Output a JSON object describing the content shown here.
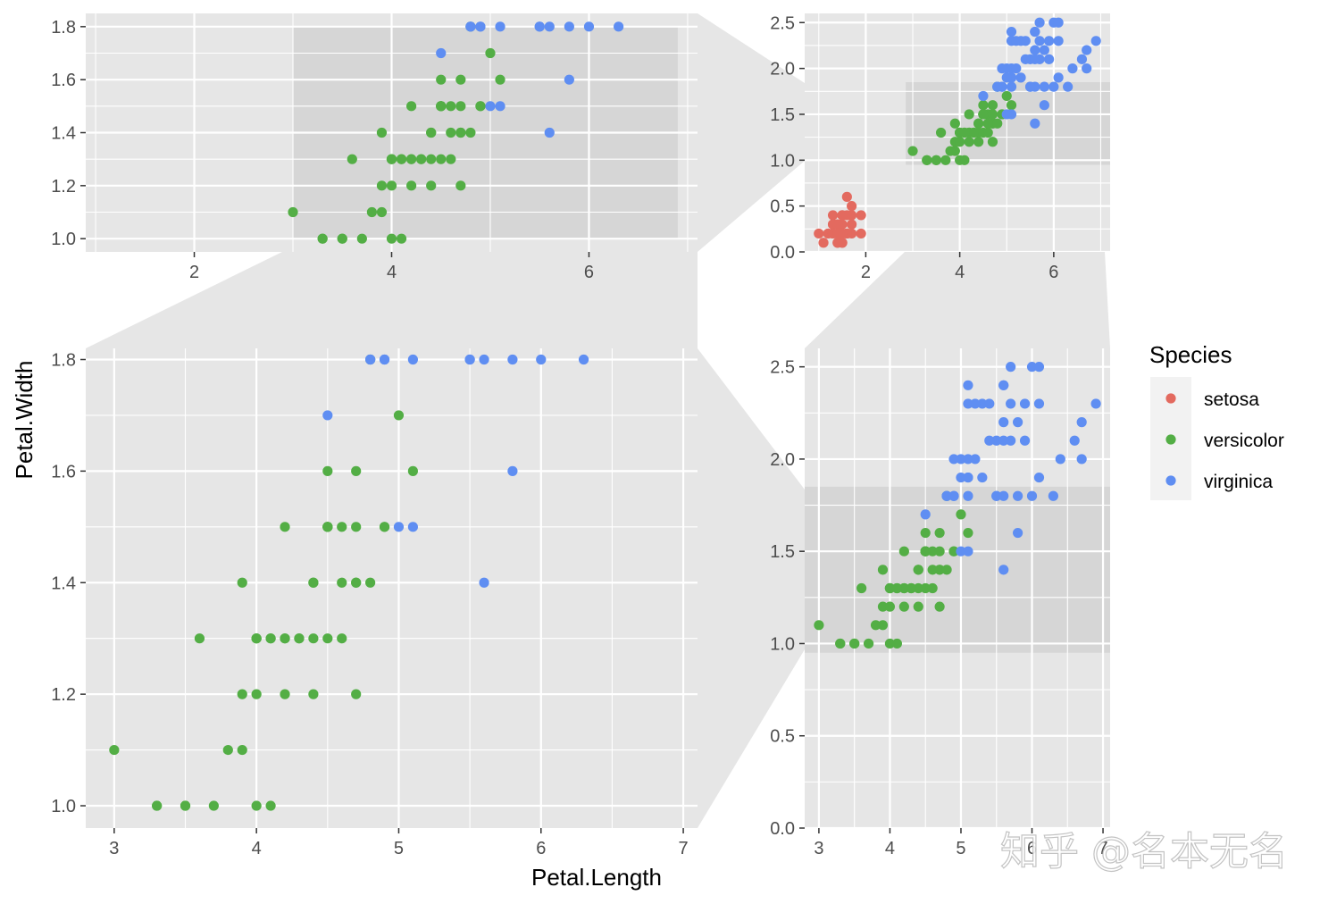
{
  "colors": {
    "setosa": "#E36A5F",
    "versicolor": "#53AE45",
    "virginica": "#5F8EF2",
    "panel_bg": "#E6E6E6",
    "zoom_bg": "#D6D6D6",
    "connector": "#E6E6E6"
  },
  "axis_titles": {
    "x": "Petal.Length",
    "y": "Petal.Width"
  },
  "legend": {
    "title": "Species",
    "entries": [
      "setosa",
      "versicolor",
      "virginica"
    ]
  },
  "watermark": "知乎 @名本无名",
  "chart_data": {
    "type": "scatter",
    "title": "",
    "xlabel": "Petal.Length",
    "ylabel": "Petal.Width",
    "legend_position": "right",
    "grid": true,
    "panels": [
      {
        "id": "top-left",
        "xlim": [
          0.9,
          7.1
        ],
        "ylim": [
          0.95,
          1.85
        ],
        "xticks": [
          2,
          4,
          6
        ],
        "yticks": [
          1.0,
          1.2,
          1.4,
          1.6,
          1.8
        ],
        "zoom_region": {
          "x": [
            3.0,
            6.9
          ],
          "y": [
            1.0,
            1.8
          ]
        }
      },
      {
        "id": "top-right",
        "xlim": [
          0.7,
          7.2
        ],
        "ylim": [
          0,
          2.6
        ],
        "xticks": [
          2,
          4,
          6
        ],
        "yticks": [
          0.0,
          0.5,
          1.0,
          1.5,
          2.0,
          2.5
        ],
        "zoom_region": {
          "x": [
            2.85,
            7.2
          ],
          "y": [
            0.95,
            1.85
          ]
        }
      },
      {
        "id": "bottom-left",
        "xlim": [
          2.8,
          7.1
        ],
        "ylim": [
          0.96,
          1.82
        ],
        "xticks": [
          3,
          4,
          5,
          6,
          7
        ],
        "yticks": [
          1.0,
          1.2,
          1.4,
          1.6,
          1.8
        ]
      },
      {
        "id": "bottom-right",
        "xlim": [
          2.8,
          7.1
        ],
        "ylim": [
          0,
          2.6
        ],
        "xticks": [
          3,
          4,
          5,
          6,
          7
        ],
        "yticks": [
          0.0,
          0.5,
          1.0,
          1.5,
          2.0,
          2.5
        ],
        "zoom_region": {
          "x": [
            2.8,
            7.1
          ],
          "y": [
            0.95,
            1.85
          ]
        }
      }
    ],
    "series": [
      {
        "name": "setosa",
        "points": [
          [
            1.4,
            0.2
          ],
          [
            1.4,
            0.2
          ],
          [
            1.3,
            0.2
          ],
          [
            1.5,
            0.2
          ],
          [
            1.4,
            0.2
          ],
          [
            1.7,
            0.4
          ],
          [
            1.4,
            0.3
          ],
          [
            1.5,
            0.2
          ],
          [
            1.4,
            0.2
          ],
          [
            1.5,
            0.1
          ],
          [
            1.5,
            0.2
          ],
          [
            1.6,
            0.2
          ],
          [
            1.4,
            0.1
          ],
          [
            1.1,
            0.1
          ],
          [
            1.2,
            0.2
          ],
          [
            1.5,
            0.4
          ],
          [
            1.3,
            0.4
          ],
          [
            1.4,
            0.3
          ],
          [
            1.7,
            0.3
          ],
          [
            1.5,
            0.3
          ],
          [
            1.7,
            0.2
          ],
          [
            1.5,
            0.4
          ],
          [
            1.0,
            0.2
          ],
          [
            1.7,
            0.5
          ],
          [
            1.9,
            0.2
          ],
          [
            1.6,
            0.2
          ],
          [
            1.6,
            0.4
          ],
          [
            1.5,
            0.2
          ],
          [
            1.4,
            0.2
          ],
          [
            1.6,
            0.2
          ],
          [
            1.6,
            0.2
          ],
          [
            1.5,
            0.4
          ],
          [
            1.5,
            0.1
          ],
          [
            1.4,
            0.2
          ],
          [
            1.5,
            0.2
          ],
          [
            1.2,
            0.2
          ],
          [
            1.3,
            0.2
          ],
          [
            1.4,
            0.1
          ],
          [
            1.3,
            0.2
          ],
          [
            1.5,
            0.2
          ],
          [
            1.3,
            0.3
          ],
          [
            1.3,
            0.3
          ],
          [
            1.3,
            0.2
          ],
          [
            1.6,
            0.6
          ],
          [
            1.9,
            0.4
          ],
          [
            1.4,
            0.3
          ],
          [
            1.6,
            0.2
          ],
          [
            1.4,
            0.2
          ],
          [
            1.5,
            0.2
          ],
          [
            1.4,
            0.2
          ]
        ]
      },
      {
        "name": "versicolor",
        "points": [
          [
            4.7,
            1.4
          ],
          [
            4.5,
            1.5
          ],
          [
            4.9,
            1.5
          ],
          [
            4.0,
            1.3
          ],
          [
            4.6,
            1.5
          ],
          [
            4.5,
            1.3
          ],
          [
            4.7,
            1.6
          ],
          [
            3.3,
            1.0
          ],
          [
            4.6,
            1.3
          ],
          [
            3.9,
            1.4
          ],
          [
            3.5,
            1.0
          ],
          [
            4.2,
            1.5
          ],
          [
            4.0,
            1.0
          ],
          [
            4.7,
            1.4
          ],
          [
            3.6,
            1.3
          ],
          [
            4.4,
            1.4
          ],
          [
            4.5,
            1.5
          ],
          [
            4.1,
            1.0
          ],
          [
            4.5,
            1.5
          ],
          [
            3.9,
            1.1
          ],
          [
            4.8,
            1.8
          ],
          [
            4.0,
            1.3
          ],
          [
            4.9,
            1.5
          ],
          [
            4.7,
            1.2
          ],
          [
            4.3,
            1.3
          ],
          [
            4.4,
            1.4
          ],
          [
            4.8,
            1.4
          ],
          [
            5.0,
            1.7
          ],
          [
            4.5,
            1.5
          ],
          [
            3.5,
            1.0
          ],
          [
            3.8,
            1.1
          ],
          [
            3.7,
            1.0
          ],
          [
            3.9,
            1.2
          ],
          [
            5.1,
            1.6
          ],
          [
            4.5,
            1.5
          ],
          [
            4.5,
            1.6
          ],
          [
            4.7,
            1.5
          ],
          [
            4.4,
            1.3
          ],
          [
            4.1,
            1.3
          ],
          [
            4.0,
            1.3
          ],
          [
            4.4,
            1.2
          ],
          [
            4.6,
            1.4
          ],
          [
            4.0,
            1.2
          ],
          [
            3.3,
            1.0
          ],
          [
            4.2,
            1.3
          ],
          [
            4.2,
            1.2
          ],
          [
            4.2,
            1.3
          ],
          [
            4.3,
            1.3
          ],
          [
            3.0,
            1.1
          ],
          [
            4.1,
            1.3
          ]
        ]
      },
      {
        "name": "virginica",
        "points": [
          [
            6.0,
            2.5
          ],
          [
            5.1,
            1.9
          ],
          [
            5.9,
            2.1
          ],
          [
            5.6,
            1.8
          ],
          [
            5.8,
            2.2
          ],
          [
            6.6,
            2.1
          ],
          [
            4.5,
            1.7
          ],
          [
            6.3,
            1.8
          ],
          [
            5.8,
            1.8
          ],
          [
            6.1,
            2.5
          ],
          [
            5.1,
            2.0
          ],
          [
            5.3,
            1.9
          ],
          [
            5.5,
            2.1
          ],
          [
            5.0,
            2.0
          ],
          [
            5.1,
            2.4
          ],
          [
            5.3,
            2.3
          ],
          [
            5.5,
            1.8
          ],
          [
            6.7,
            2.2
          ],
          [
            6.9,
            2.3
          ],
          [
            5.0,
            1.5
          ],
          [
            5.7,
            2.3
          ],
          [
            4.9,
            2.0
          ],
          [
            6.7,
            2.0
          ],
          [
            4.9,
            1.8
          ],
          [
            5.7,
            2.1
          ],
          [
            6.0,
            1.8
          ],
          [
            4.8,
            1.8
          ],
          [
            4.9,
            1.8
          ],
          [
            5.6,
            2.1
          ],
          [
            5.8,
            1.6
          ],
          [
            6.1,
            1.9
          ],
          [
            6.4,
            2.0
          ],
          [
            5.6,
            2.2
          ],
          [
            5.1,
            1.5
          ],
          [
            5.6,
            1.4
          ],
          [
            6.1,
            2.3
          ],
          [
            5.6,
            2.4
          ],
          [
            5.5,
            1.8
          ],
          [
            4.8,
            1.8
          ],
          [
            5.4,
            2.1
          ],
          [
            5.6,
            2.4
          ],
          [
            5.1,
            2.3
          ],
          [
            5.1,
            1.9
          ],
          [
            5.9,
            2.3
          ],
          [
            5.7,
            2.5
          ],
          [
            5.2,
            2.3
          ],
          [
            5.0,
            1.9
          ],
          [
            5.2,
            2.0
          ],
          [
            5.4,
            2.3
          ],
          [
            5.1,
            1.8
          ]
        ]
      }
    ]
  }
}
